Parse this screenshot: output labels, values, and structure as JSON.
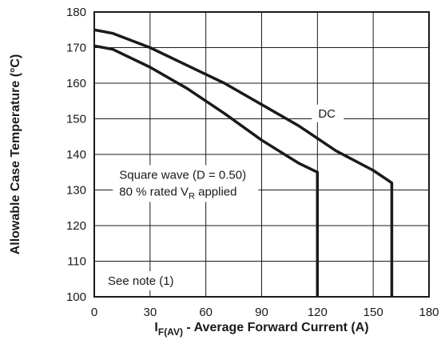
{
  "chart_data": {
    "type": "line",
    "xlabel": {
      "main": "I",
      "sub": "F(AV)",
      "rest": " - Average Forward Current (A)"
    },
    "ylabel": "Allowable Case Temperature (°C)",
    "xlim": [
      0,
      180
    ],
    "ylim": [
      100,
      180
    ],
    "xticks": [
      0,
      30,
      60,
      90,
      120,
      150,
      180
    ],
    "yticks": [
      100,
      110,
      120,
      130,
      140,
      150,
      160,
      170,
      180
    ],
    "grid": true,
    "series": [
      {
        "name": "DC",
        "x": [
          0,
          10,
          30,
          50,
          70,
          90,
          110,
          130,
          150,
          160,
          160
        ],
        "y": [
          175,
          174,
          170,
          165,
          160,
          154,
          148,
          141,
          135.5,
          132,
          100
        ]
      },
      {
        "name": "Square wave (D = 0.50)",
        "x": [
          0,
          10,
          30,
          50,
          70,
          90,
          110,
          120,
          120
        ],
        "y": [
          170.5,
          169.5,
          164.5,
          158.5,
          151.5,
          144,
          137.5,
          135,
          100
        ]
      }
    ],
    "annotations": {
      "dc": "DC",
      "square_line1": "Square wave (D = 0.50)",
      "square_line2_main": "80 % rated V",
      "square_line2_sub": "R",
      "square_line2_rest": " applied",
      "note": "See note (1)"
    }
  }
}
